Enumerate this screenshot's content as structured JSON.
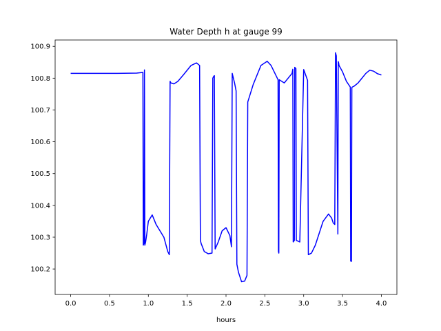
{
  "chart_data": {
    "type": "line",
    "title": "Water Depth h at gauge 99",
    "xlabel": "hours",
    "ylabel": "",
    "xlim": [
      -0.2,
      4.2
    ],
    "ylim": [
      100.12,
      100.92
    ],
    "xticks": [
      0.0,
      0.5,
      1.0,
      1.5,
      2.0,
      2.5,
      3.0,
      3.5,
      4.0
    ],
    "xtick_labels": [
      "0.0",
      "0.5",
      "1.0",
      "1.5",
      "2.0",
      "2.5",
      "3.0",
      "3.5",
      "4.0"
    ],
    "yticks": [
      100.2,
      100.3,
      100.4,
      100.5,
      100.6,
      100.7,
      100.8,
      100.9
    ],
    "ytick_labels": [
      "100.2",
      "100.3",
      "100.4",
      "100.5",
      "100.6",
      "100.7",
      "100.8",
      "100.9"
    ],
    "grid": false,
    "series": [
      {
        "color": "#0000ff",
        "x": [
          0.0,
          0.3,
          0.6,
          0.85,
          0.93,
          0.935,
          0.945,
          0.95,
          0.955,
          0.965,
          0.98,
          1.0,
          1.05,
          1.1,
          1.2,
          1.25,
          1.27,
          1.28,
          1.29,
          1.33,
          1.38,
          1.45,
          1.55,
          1.62,
          1.66,
          1.67,
          1.68,
          1.72,
          1.77,
          1.82,
          1.83,
          1.84,
          1.85,
          1.86,
          1.9,
          1.95,
          2.0,
          2.05,
          2.07,
          2.08,
          2.11,
          2.13,
          2.14,
          2.16,
          2.2,
          2.24,
          2.27,
          2.28,
          2.35,
          2.45,
          2.53,
          2.58,
          2.63,
          2.67,
          2.675,
          2.68,
          2.685,
          2.75,
          2.85,
          2.86,
          2.865,
          2.88,
          2.885,
          2.9,
          2.905,
          2.95,
          3.0,
          3.04,
          3.05,
          3.06,
          3.1,
          3.15,
          3.25,
          3.32,
          3.36,
          3.38,
          3.4,
          3.41,
          3.42,
          3.44,
          3.445,
          3.45,
          3.455,
          3.5,
          3.55,
          3.6,
          3.605,
          3.615,
          3.62,
          3.625,
          3.65,
          3.7,
          3.75,
          3.8,
          3.85,
          3.9,
          3.95,
          4.0
        ],
        "y": [
          100.815,
          100.815,
          100.815,
          100.816,
          100.818,
          100.275,
          100.282,
          100.826,
          100.275,
          100.285,
          100.31,
          100.35,
          100.37,
          100.34,
          100.3,
          100.255,
          100.245,
          100.79,
          100.785,
          100.782,
          100.79,
          100.81,
          100.84,
          100.848,
          100.84,
          100.29,
          100.28,
          100.255,
          100.248,
          100.25,
          100.8,
          100.805,
          100.808,
          100.263,
          100.285,
          100.32,
          100.33,
          100.305,
          100.27,
          100.815,
          100.785,
          100.76,
          100.215,
          100.19,
          100.16,
          100.162,
          100.18,
          100.725,
          100.78,
          100.84,
          100.853,
          100.84,
          100.815,
          100.795,
          100.255,
          100.25,
          100.795,
          100.785,
          100.815,
          100.828,
          100.285,
          100.29,
          100.834,
          100.83,
          100.29,
          100.285,
          100.827,
          100.8,
          100.793,
          100.245,
          100.25,
          100.275,
          100.35,
          100.373,
          100.36,
          100.345,
          100.34,
          100.88,
          100.87,
          100.31,
          100.852,
          100.848,
          100.84,
          100.82,
          100.79,
          100.772,
          100.225,
          100.224,
          100.77,
          100.772,
          100.775,
          100.785,
          100.8,
          100.815,
          100.825,
          100.822,
          100.814,
          100.81
        ]
      }
    ]
  }
}
